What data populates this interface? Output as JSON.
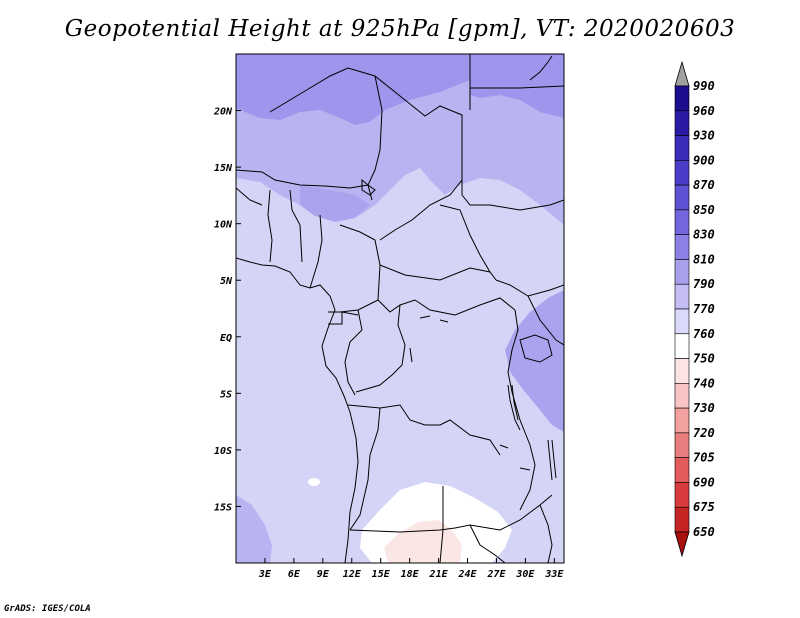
{
  "title": "Geopotential Height at 925hPa [gpm], VT: 2020020603",
  "credit": "GrADS: IGES/COLA",
  "map": {
    "lon_range": [
      0,
      34
    ],
    "lat_range": [
      -20,
      25
    ],
    "x_ticks": [
      {
        "value": 3,
        "label": "3E"
      },
      {
        "value": 6,
        "label": "6E"
      },
      {
        "value": 9,
        "label": "9E"
      },
      {
        "value": 12,
        "label": "12E"
      },
      {
        "value": 15,
        "label": "15E"
      },
      {
        "value": 18,
        "label": "18E"
      },
      {
        "value": 21,
        "label": "21E"
      },
      {
        "value": 24,
        "label": "24E"
      },
      {
        "value": 27,
        "label": "27E"
      },
      {
        "value": 30,
        "label": "30E"
      },
      {
        "value": 33,
        "label": "33E"
      }
    ],
    "y_ticks": [
      {
        "value": 20,
        "label": "20N"
      },
      {
        "value": 15,
        "label": "15N"
      },
      {
        "value": 10,
        "label": "10N"
      },
      {
        "value": 5,
        "label": "5N"
      },
      {
        "value": 0,
        "label": "EQ"
      },
      {
        "value": -5,
        "label": "5S"
      },
      {
        "value": -10,
        "label": "10S"
      },
      {
        "value": -15,
        "label": "15S"
      }
    ]
  },
  "colorbar": {
    "levels": [
      "990",
      "960",
      "930",
      "900",
      "870",
      "850",
      "830",
      "810",
      "790",
      "770",
      "760",
      "750",
      "740",
      "730",
      "720",
      "705",
      "690",
      "675",
      "650"
    ],
    "colors": [
      "#a0a0a0",
      "#1c0c8e",
      "#2a1aa4",
      "#3a2cb8",
      "#4a3ec8",
      "#5e52d4",
      "#7466dc",
      "#8c80e4",
      "#a8a0ec",
      "#c4bef4",
      "#dcdafa",
      "#ffffff",
      "#fce4e4",
      "#f8c4c4",
      "#f2a0a0",
      "#ea7e7e",
      "#e25c5c",
      "#d83c3c",
      "#c42424",
      "#a81010"
    ]
  }
}
